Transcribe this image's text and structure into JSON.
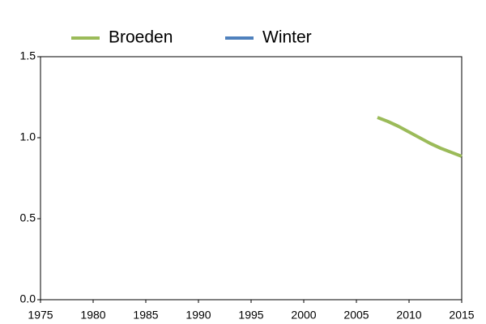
{
  "chart_data": {
    "type": "line",
    "x": [
      2007,
      2008,
      2009,
      2010,
      2011,
      2012,
      2013,
      2014,
      2015
    ],
    "series": [
      {
        "name": "Broeden",
        "color": "#9bbb59",
        "values": [
          1.125,
          1.1,
          1.07,
          1.035,
          1.0,
          0.965,
          0.935,
          0.91,
          0.885
        ]
      },
      {
        "name": "Winter",
        "color": "#4f81bd",
        "values": [
          null,
          null,
          null,
          null,
          null,
          null,
          null,
          null,
          null
        ]
      }
    ],
    "xlim": [
      1975,
      2015
    ],
    "xticks": [
      1975,
      1980,
      1985,
      1990,
      1995,
      2000,
      2005,
      2010,
      2015
    ],
    "ylim": [
      0,
      1.5
    ],
    "yticks": [
      {
        "value": 0,
        "label": "0.0"
      },
      {
        "value": 0.5,
        "label": "0.5"
      },
      {
        "value": 1,
        "label": "1.0"
      },
      {
        "value": 1.5,
        "label": "1.5"
      }
    ],
    "legend": "top"
  }
}
